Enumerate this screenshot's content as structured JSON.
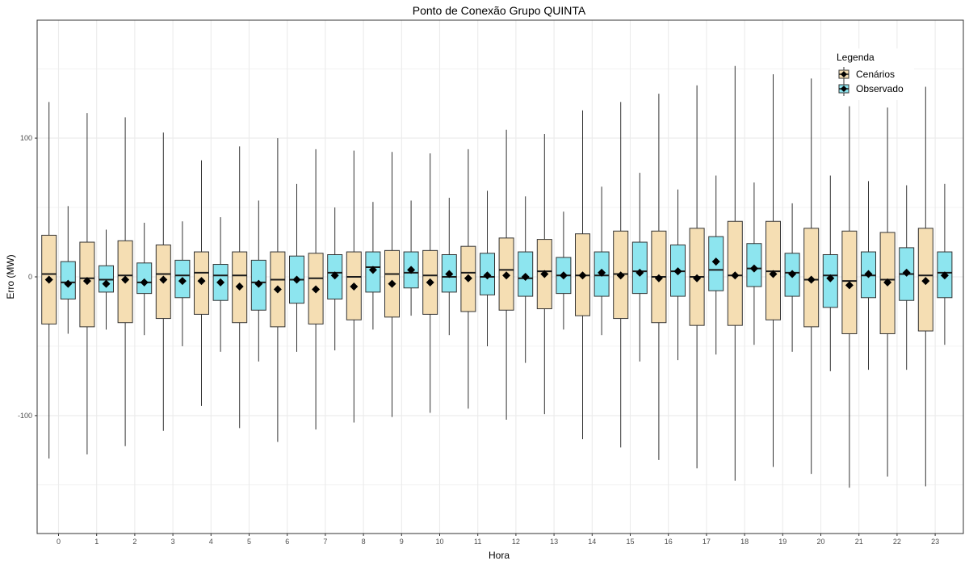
{
  "chart_data": {
    "type": "box",
    "title": "Ponto de Conexão Grupo QUINTA",
    "xlabel": "Hora",
    "ylabel": "Erro (MW)",
    "categories": [
      "0",
      "1",
      "2",
      "3",
      "4",
      "5",
      "6",
      "7",
      "8",
      "9",
      "10",
      "11",
      "12",
      "13",
      "14",
      "15",
      "16",
      "17",
      "18",
      "19",
      "20",
      "21",
      "22",
      "23"
    ],
    "ylim": [
      -185,
      185
    ],
    "yticks": [
      -100,
      0,
      100
    ],
    "grid": true,
    "legend_title": "Legenda",
    "legend_position": "top-right",
    "colors": {
      "Cenários": "#f5deb3",
      "Observado": "#8de5ef",
      "mean_marker": "#000000"
    },
    "series": [
      {
        "name": "Cenários",
        "min": [
          -131,
          -128,
          -122,
          -111,
          -93,
          -109,
          -119,
          -110,
          -105,
          -101,
          -98,
          -95,
          -103,
          -99,
          -117,
          -123,
          -132,
          -138,
          -147,
          -137,
          -142,
          -152,
          -144,
          -151
        ],
        "q1": [
          -34,
          -36,
          -33,
          -30,
          -27,
          -33,
          -36,
          -34,
          -31,
          -29,
          -27,
          -25,
          -24,
          -23,
          -28,
          -30,
          -33,
          -35,
          -35,
          -31,
          -36,
          -41,
          -41,
          -39
        ],
        "median": [
          2,
          -1,
          1,
          2,
          3,
          1,
          -2,
          -1,
          0,
          2,
          1,
          3,
          5,
          4,
          1,
          2,
          0,
          0,
          1,
          4,
          -2,
          -3,
          -2,
          1
        ],
        "q3": [
          30,
          25,
          26,
          23,
          18,
          18,
          18,
          17,
          18,
          19,
          19,
          22,
          28,
          27,
          31,
          33,
          33,
          35,
          40,
          40,
          35,
          33,
          32,
          35
        ],
        "max": [
          126,
          118,
          115,
          104,
          84,
          94,
          100,
          92,
          91,
          90,
          89,
          92,
          106,
          103,
          120,
          126,
          132,
          138,
          152,
          146,
          143,
          123,
          122,
          137
        ],
        "mean": [
          -2,
          -3,
          -2,
          -2,
          -3,
          -7,
          -9,
          -9,
          -7,
          -5,
          -4,
          -1,
          1,
          2,
          1,
          1,
          -1,
          -1,
          1,
          2,
          -2,
          -6,
          -4,
          -3
        ]
      },
      {
        "name": "Observado",
        "min": [
          -41,
          -38,
          -42,
          -50,
          -54,
          -61,
          -54,
          -53,
          -38,
          -28,
          -42,
          -50,
          -62,
          -38,
          -42,
          -61,
          -60,
          -56,
          -49,
          -54,
          -68,
          -67,
          -67,
          -49
        ],
        "q1": [
          -16,
          -11,
          -12,
          -15,
          -17,
          -24,
          -19,
          -16,
          -11,
          -8,
          -11,
          -13,
          -14,
          -12,
          -14,
          -12,
          -14,
          -10,
          -7,
          -14,
          -22,
          -15,
          -17,
          -15
        ],
        "median": [
          -4,
          -2,
          -4,
          1,
          1,
          -4,
          -2,
          3,
          7,
          3,
          0,
          0,
          -1,
          1,
          1,
          4,
          4,
          5,
          6,
          3,
          1,
          1,
          2,
          3
        ],
        "q3": [
          11,
          8,
          10,
          12,
          9,
          12,
          15,
          16,
          18,
          18,
          16,
          17,
          18,
          14,
          18,
          25,
          23,
          29,
          24,
          17,
          16,
          18,
          21,
          18
        ],
        "max": [
          51,
          34,
          39,
          40,
          43,
          55,
          67,
          50,
          54,
          55,
          57,
          62,
          58,
          47,
          65,
          75,
          63,
          73,
          68,
          53,
          73,
          69,
          66,
          67
        ],
        "mean": [
          -5,
          -5,
          -4,
          -3,
          -4,
          -5,
          -2,
          1,
          5,
          5,
          2,
          1,
          0,
          1,
          3,
          3,
          4,
          11,
          6,
          2,
          -1,
          2,
          3,
          1
        ]
      }
    ]
  }
}
